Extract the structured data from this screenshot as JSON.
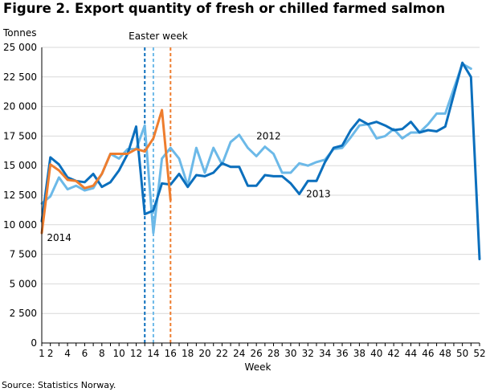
{
  "title": "Figure 2. Export quantity of fresh or chilled farmed salmon",
  "source": "Source: Statistics Norway.",
  "colors": {
    "2012": "#6cb9e8",
    "2013": "#0b6fbd",
    "2014": "#ee7d2e",
    "grid": "#d9d9d9",
    "axis": "#000000"
  },
  "chart_data": {
    "type": "line",
    "title": "Figure 2. Export quantity of fresh or chilled farmed salmon",
    "xlabel": "Week",
    "ylabel": "Tonnes",
    "xlim": [
      1,
      52
    ],
    "ylim": [
      0,
      25000
    ],
    "grid": true,
    "x_ticks": [
      1,
      2,
      4,
      6,
      8,
      10,
      12,
      14,
      16,
      18,
      20,
      22,
      24,
      26,
      28,
      30,
      32,
      34,
      36,
      38,
      40,
      42,
      44,
      46,
      48,
      50,
      52
    ],
    "x_tick_labels": [
      "1",
      "2",
      "4",
      "6",
      "8",
      "10",
      "12",
      "14",
      "16",
      "18",
      "20",
      "22",
      "24",
      "26",
      "28",
      "30",
      "32",
      "34",
      "36",
      "38",
      "40",
      "42",
      "44",
      "46",
      "48",
      "50",
      "52"
    ],
    "y_ticks": [
      0,
      2500,
      5000,
      7500,
      10000,
      12500,
      15000,
      17500,
      20000,
      22500,
      25000
    ],
    "y_tick_labels": [
      "0",
      "2 500",
      "5 000",
      "7 500",
      "10 000",
      "12 500",
      "15 000",
      "17 500",
      "20 000",
      "22 500",
      "25 000"
    ],
    "series": [
      {
        "name": "2012",
        "x": [
          1,
          2,
          3,
          4,
          5,
          6,
          7,
          8,
          9,
          10,
          11,
          12,
          13,
          14,
          15,
          16,
          17,
          18,
          19,
          20,
          21,
          22,
          23,
          24,
          25,
          26,
          27,
          28,
          29,
          30,
          31,
          32,
          33,
          34,
          35,
          36,
          37,
          38,
          39,
          40,
          41,
          42,
          43,
          44,
          45,
          46,
          47,
          48,
          49,
          50,
          51
        ],
        "y": [
          11800,
          12400,
          14000,
          13000,
          13300,
          12900,
          13100,
          14300,
          16000,
          15600,
          16400,
          16400,
          18400,
          9300,
          15600,
          16500,
          15600,
          13300,
          16500,
          14400,
          16500,
          15100,
          17000,
          17600,
          16500,
          15800,
          16600,
          16000,
          14400,
          14400,
          15200,
          15000,
          15300,
          15500,
          16400,
          16500,
          17400,
          18400,
          18500,
          17300,
          17500,
          18100,
          17300,
          17800,
          17800,
          18500,
          19400,
          19400,
          21500,
          23600,
          23200
        ]
      },
      {
        "name": "2013",
        "x": [
          1,
          2,
          3,
          4,
          5,
          6,
          7,
          8,
          9,
          10,
          11,
          12,
          13,
          14,
          15,
          16,
          17,
          18,
          19,
          20,
          21,
          22,
          23,
          24,
          25,
          26,
          27,
          28,
          29,
          30,
          31,
          32,
          33,
          34,
          35,
          36,
          37,
          38,
          39,
          40,
          41,
          42,
          43,
          44,
          45,
          46,
          47,
          48,
          49,
          50,
          51,
          52
        ],
        "y": [
          10300,
          15700,
          15100,
          14000,
          13700,
          13600,
          14300,
          13200,
          13600,
          14600,
          16000,
          18300,
          10900,
          11200,
          13500,
          13400,
          14300,
          13200,
          14200,
          14100,
          14400,
          15200,
          14900,
          14900,
          13300,
          13300,
          14200,
          14100,
          14100,
          13500,
          12600,
          13700,
          13700,
          15300,
          16500,
          16700,
          18000,
          18900,
          18500,
          18700,
          18400,
          18000,
          18100,
          18700,
          17800,
          18000,
          17900,
          18300,
          21000,
          23700,
          22500,
          7100
        ]
      },
      {
        "name": "2014",
        "x": [
          1,
          2,
          3,
          4,
          5,
          6,
          7,
          8,
          9,
          10,
          11,
          12,
          13,
          14,
          15,
          16
        ],
        "y": [
          9300,
          15100,
          14600,
          13800,
          13700,
          13100,
          13300,
          14300,
          16000,
          16000,
          16000,
          16400,
          16200,
          17300,
          19700,
          12100
        ]
      }
    ],
    "annotations": [
      {
        "text": "Easter week",
        "x": 14
      },
      {
        "text": "2012",
        "x": 26,
        "y": 17500
      },
      {
        "text": "2013",
        "x": 31.8,
        "y": 12600
      },
      {
        "text": "2014",
        "x": 1.6,
        "y": 8900
      }
    ],
    "reference_lines": [
      {
        "x": 13,
        "color": "#0b6fbd"
      },
      {
        "x": 14,
        "color": "#6cb9e8"
      },
      {
        "x": 16,
        "color": "#ee7d2e"
      }
    ]
  }
}
